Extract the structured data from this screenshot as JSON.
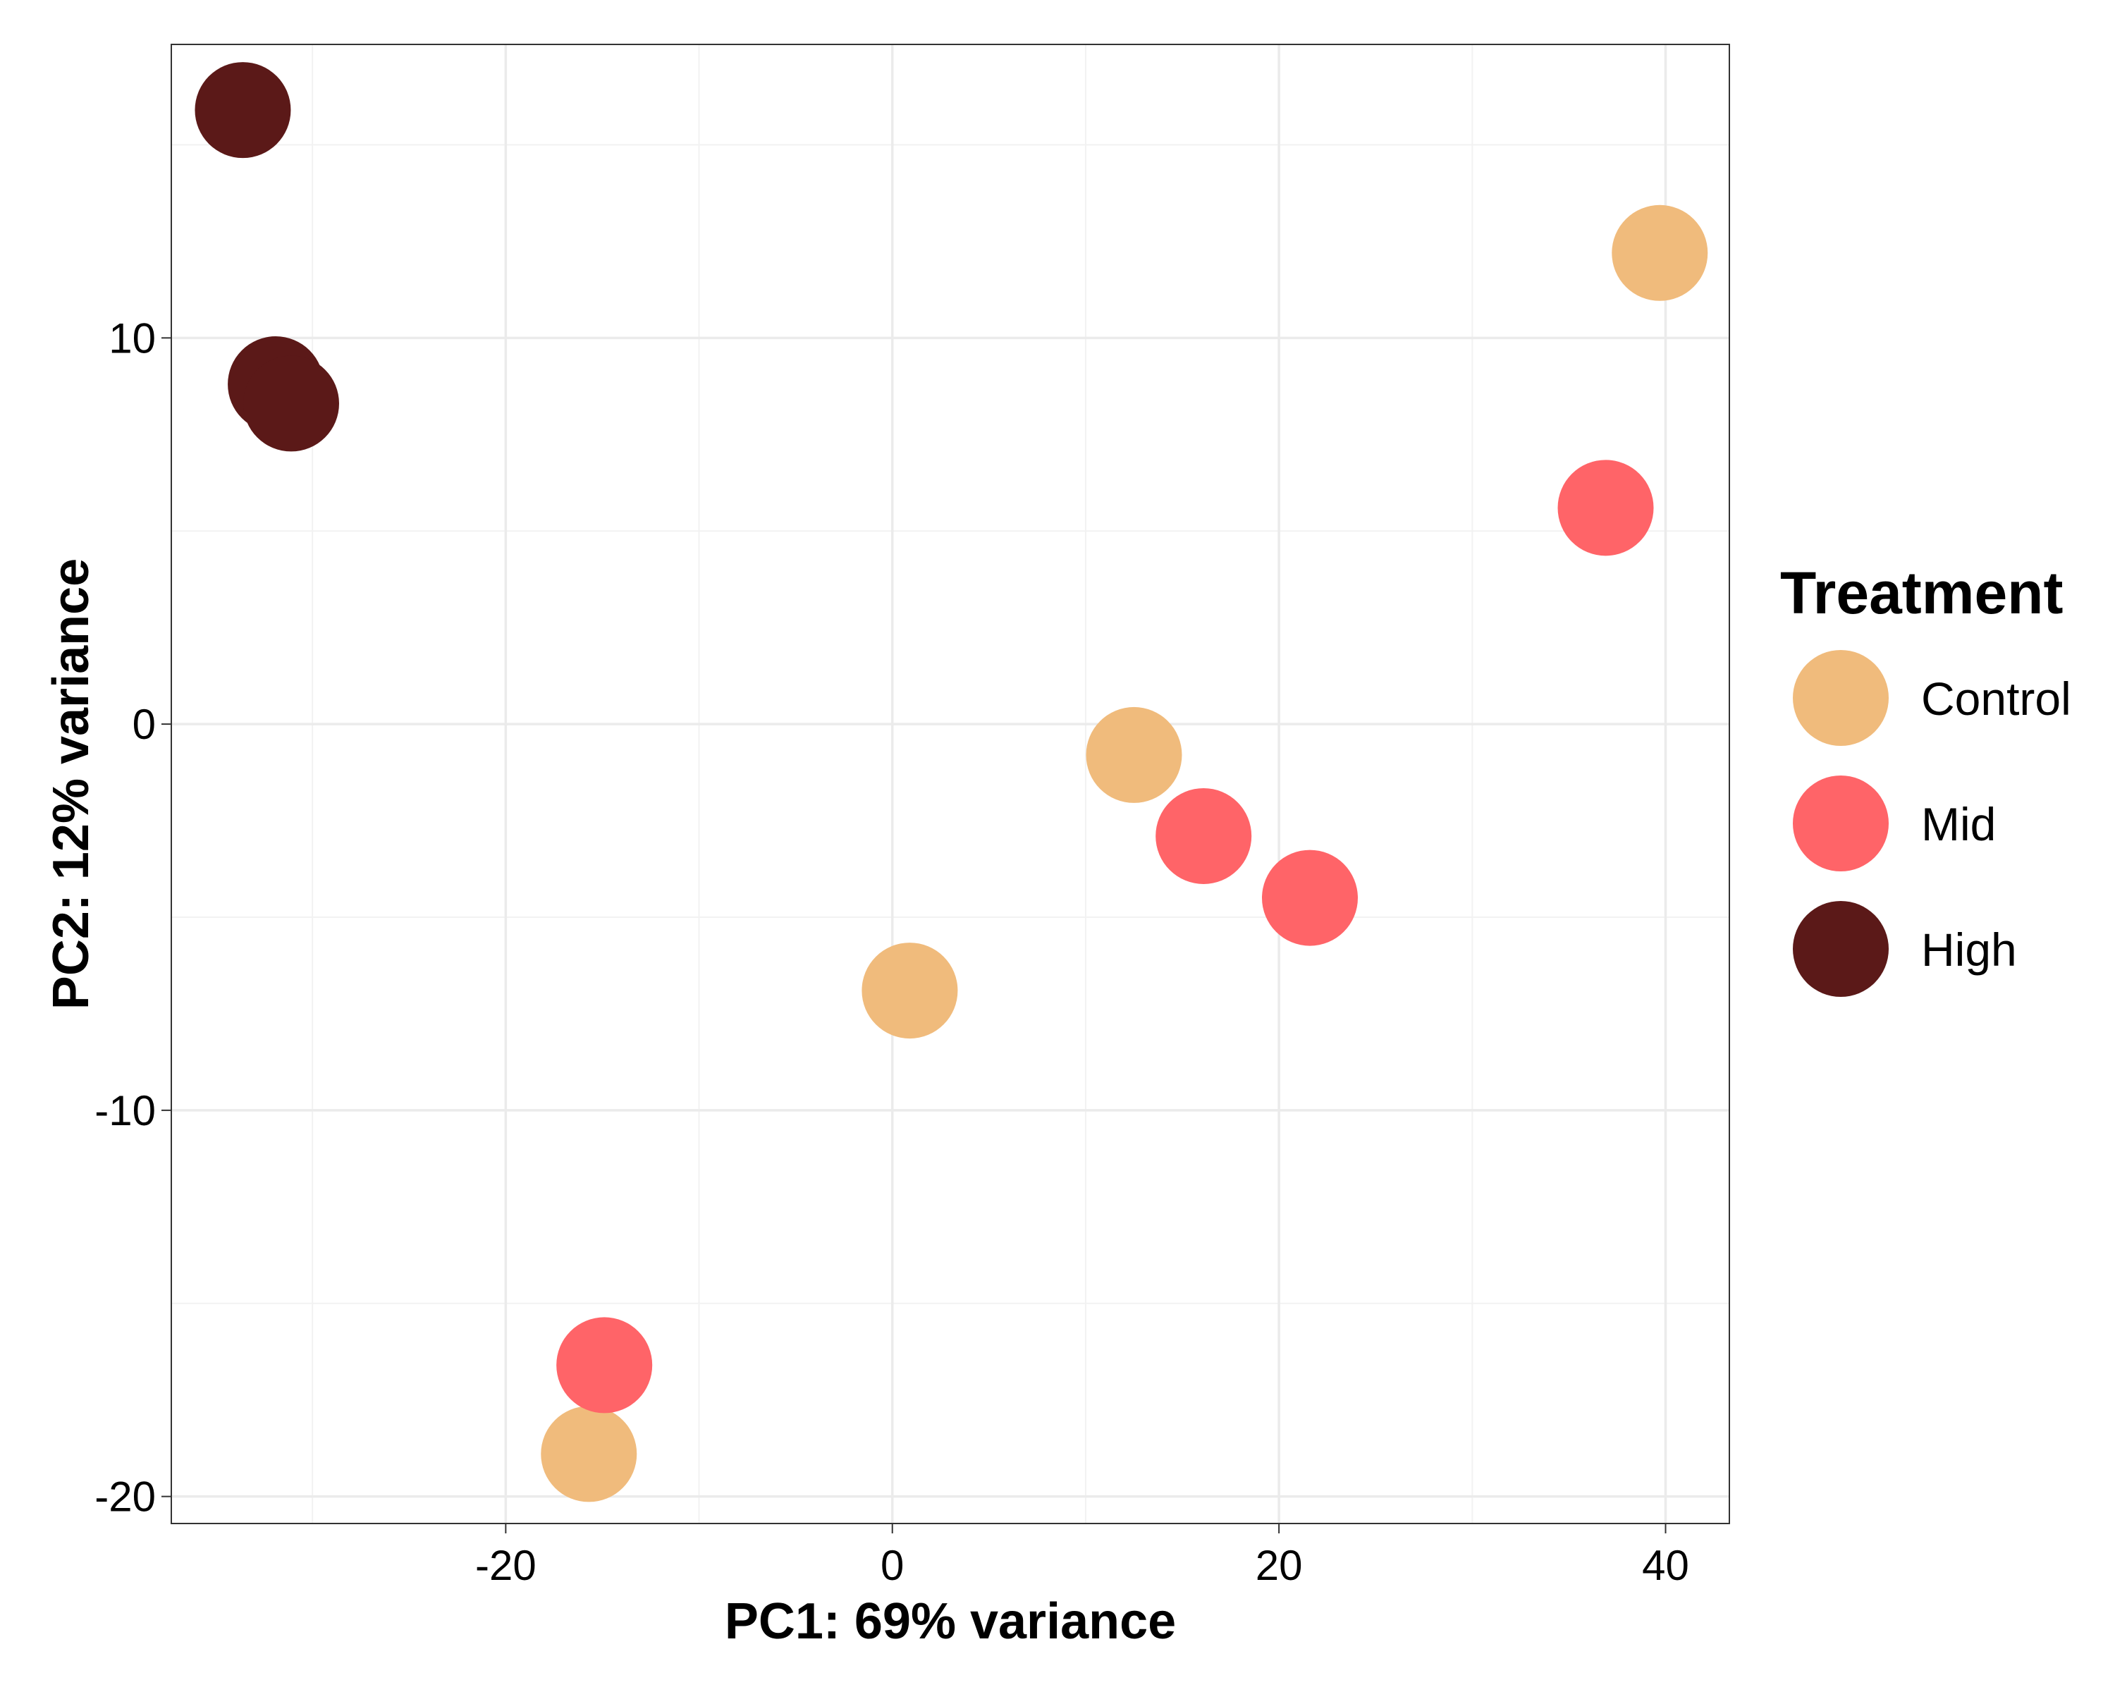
{
  "chart_data": {
    "type": "scatter",
    "xlabel": "PC1: 69% variance",
    "ylabel": "PC2: 12% variance",
    "xlim": [
      -37.3,
      43.3
    ],
    "ylim": [
      -20.7,
      17.6
    ],
    "x_ticks": [
      -20,
      0,
      20,
      40
    ],
    "x_tick_labels": [
      "-20",
      "0",
      "20",
      "40"
    ],
    "y_ticks": [
      -20,
      -10,
      0,
      10
    ],
    "y_tick_labels": [
      "-20",
      "-10",
      "0",
      "10"
    ],
    "grid": true,
    "legend": {
      "title": "Treatment",
      "position": "right",
      "entries": [
        "Control",
        "Mid",
        "High"
      ]
    },
    "series": [
      {
        "name": "Control",
        "color": "#F0BB7C",
        "points": [
          {
            "x": 39.7,
            "y": 12.2
          },
          {
            "x": 12.5,
            "y": -0.8
          },
          {
            "x": 0.9,
            "y": -6.9
          },
          {
            "x": -15.7,
            "y": -18.9
          }
        ]
      },
      {
        "name": "Mid",
        "color": "#FF6468",
        "points": [
          {
            "x": 36.9,
            "y": 5.6
          },
          {
            "x": 16.1,
            "y": -2.9
          },
          {
            "x": 21.6,
            "y": -4.5
          },
          {
            "x": -14.9,
            "y": -16.6
          }
        ]
      },
      {
        "name": "High",
        "color": "#5B1918",
        "points": [
          {
            "x": -33.6,
            "y": 15.9
          },
          {
            "x": -31.9,
            "y": 8.8
          },
          {
            "x": -31.1,
            "y": 8.3
          }
        ]
      }
    ]
  }
}
